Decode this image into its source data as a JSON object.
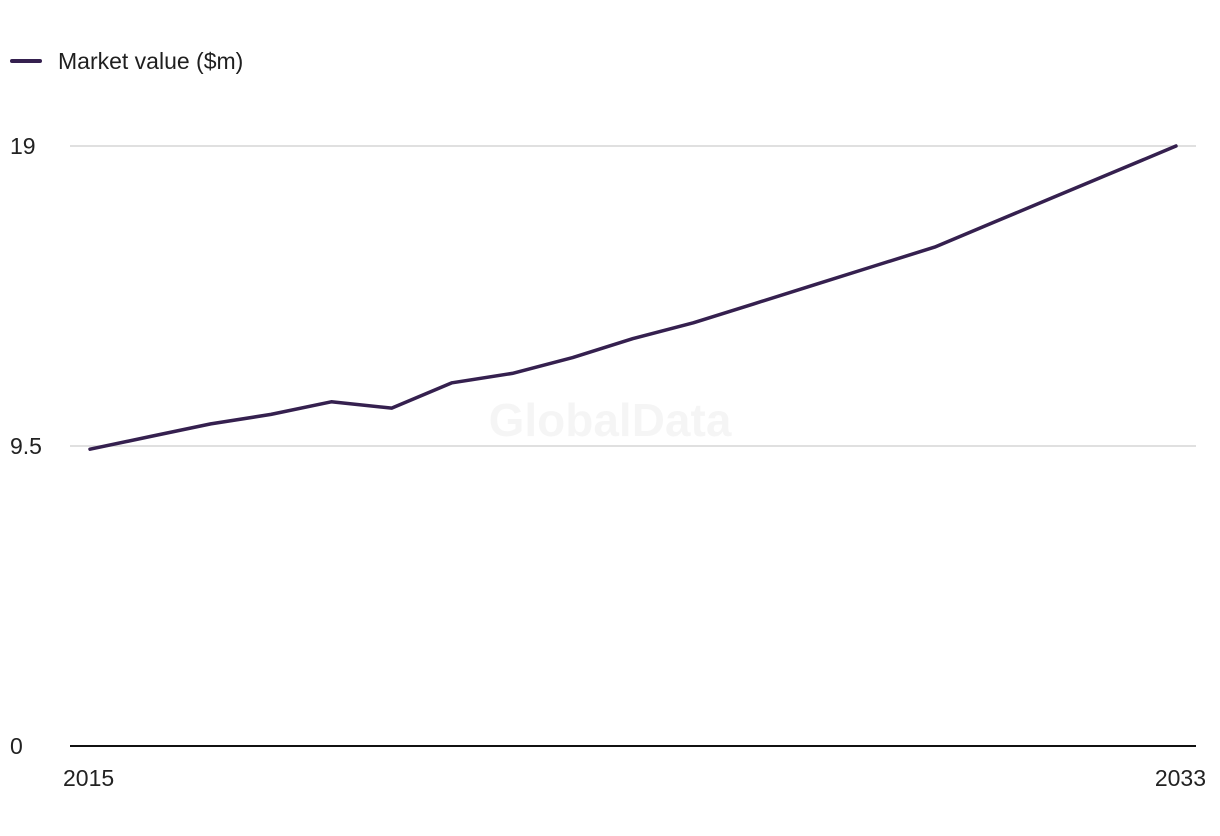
{
  "watermark": "GlobalData",
  "chart_data": {
    "type": "line",
    "title": "",
    "xlabel": "",
    "ylabel": "",
    "x": [
      2015,
      2016,
      2017,
      2018,
      2019,
      2020,
      2021,
      2022,
      2023,
      2024,
      2025,
      2026,
      2027,
      2028,
      2029,
      2030,
      2031,
      2032,
      2033
    ],
    "series": [
      {
        "name": "Market value ($m)",
        "color": "#35204f",
        "values": [
          9.4,
          9.8,
          10.2,
          10.5,
          10.9,
          10.7,
          11.5,
          11.8,
          12.3,
          12.9,
          13.4,
          14.0,
          14.6,
          15.2,
          15.8,
          16.6,
          17.4,
          18.2,
          19.0
        ]
      }
    ],
    "yticks": [
      0,
      9.5,
      19
    ],
    "ytick_labels": [
      "0",
      "9.5",
      "19"
    ],
    "xtick_labels": [
      "2015",
      "2033"
    ],
    "ylim": [
      0,
      19
    ],
    "xlim": [
      2015,
      2033
    ],
    "grid": true,
    "legend_position": "top-left"
  }
}
